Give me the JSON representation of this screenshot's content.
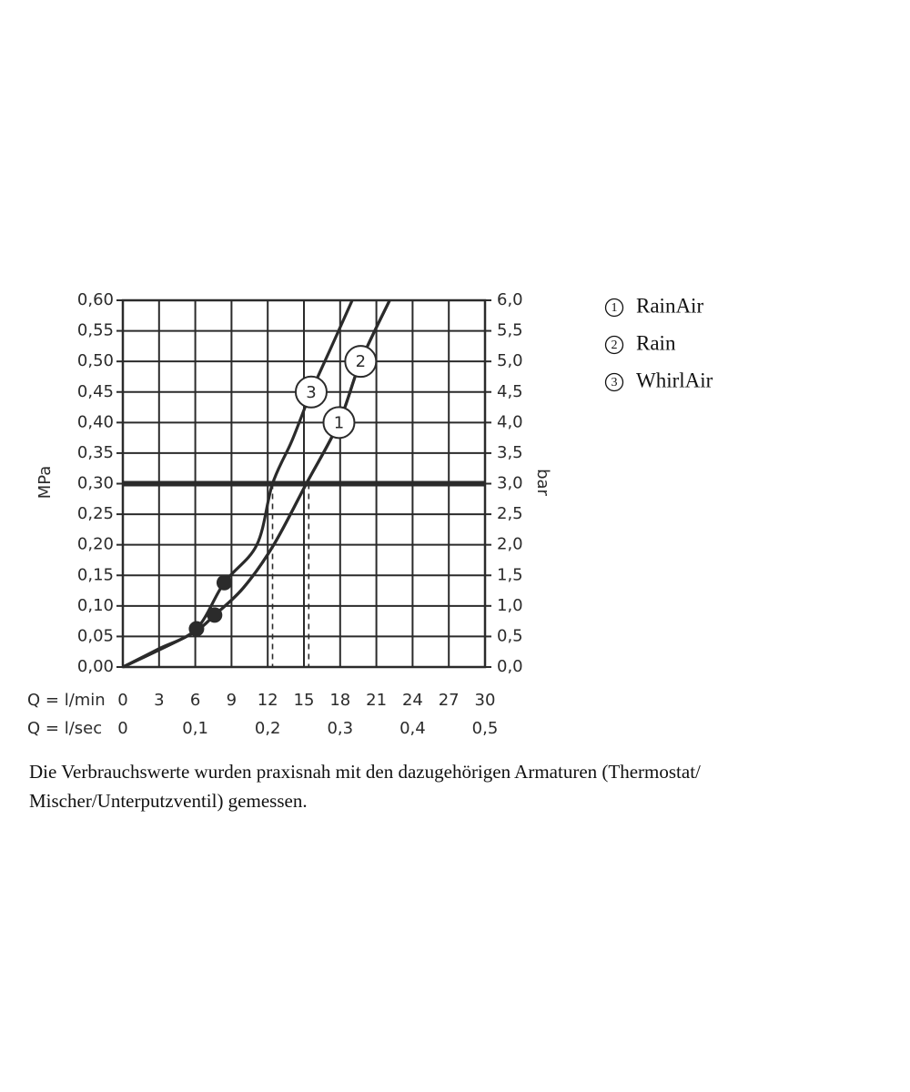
{
  "chart_data": {
    "type": "line",
    "ylabel": "MPa",
    "y2label": "bar",
    "xlabel": "Q = l/min",
    "x2label": "Q = l/sec",
    "xlim": [
      0,
      30
    ],
    "xticks": [
      0,
      3,
      6,
      9,
      12,
      15,
      18,
      21,
      24,
      27,
      30
    ],
    "x2lim": [
      0,
      0.5
    ],
    "x2ticks": [
      0,
      {
        "value": 0.1,
        "label": "0,1"
      },
      {
        "value": 0.2,
        "label": "0,2"
      },
      {
        "value": 0.3,
        "label": "0,3"
      },
      {
        "value": 0.4,
        "label": "0,4"
      },
      {
        "value": 0.5,
        "label": "0,5"
      }
    ],
    "ylim": [
      0,
      0.6
    ],
    "yticks": [
      {
        "value": 0,
        "label": "0,00"
      },
      {
        "value": 0.05,
        "label": "0,05"
      },
      {
        "value": 0.1,
        "label": "0,10"
      },
      {
        "value": 0.15,
        "label": "0,15"
      },
      {
        "value": 0.2,
        "label": "0,20"
      },
      {
        "value": 0.25,
        "label": "0,25"
      },
      {
        "value": 0.3,
        "label": "0,30"
      },
      {
        "value": 0.35,
        "label": "0,35"
      },
      {
        "value": 0.4,
        "label": "0,40"
      },
      {
        "value": 0.45,
        "label": "0,45"
      },
      {
        "value": 0.5,
        "label": "0,50"
      },
      {
        "value": 0.55,
        "label": "0,55"
      },
      {
        "value": 0.6,
        "label": "0,60"
      }
    ],
    "y2lim": [
      0,
      6
    ],
    "y2ticks": [
      {
        "value": 0,
        "label": "0,0"
      },
      {
        "value": 0.5,
        "label": "0,5"
      },
      {
        "value": 1,
        "label": "1,0"
      },
      {
        "value": 1.5,
        "label": "1,5"
      },
      {
        "value": 2,
        "label": "2,0"
      },
      {
        "value": 2.5,
        "label": "2,5"
      },
      {
        "value": 3,
        "label": "3,0"
      },
      {
        "value": 3.5,
        "label": "3,5"
      },
      {
        "value": 4,
        "label": "4,0"
      },
      {
        "value": 4.5,
        "label": "4,5"
      },
      {
        "value": 5,
        "label": "5,0"
      },
      {
        "value": 5.5,
        "label": "5,5"
      },
      {
        "value": 6,
        "label": "6,0"
      }
    ],
    "grid": true,
    "color": "#2b2b2b",
    "series": [
      {
        "name": "RainAir",
        "label": "1",
        "x": [
          0,
          3,
          6,
          7.6,
          10,
          12.5,
          15.2,
          17.9,
          19.7,
          22.1
        ],
        "values": [
          0,
          0.028,
          0.058,
          0.085,
          0.13,
          0.2,
          0.3,
          0.4,
          0.5,
          0.6
        ]
      },
      {
        "name": "Rain",
        "label": "2",
        "x": [
          0,
          3,
          6,
          7.6,
          10,
          12.5,
          15.2,
          17.9,
          19.7,
          22.1
        ],
        "values": [
          0,
          0.028,
          0.058,
          0.085,
          0.13,
          0.2,
          0.3,
          0.4,
          0.5,
          0.6
        ]
      },
      {
        "name": "WhirlAir",
        "label": "3",
        "x": [
          0,
          3,
          6.1,
          8.4,
          11.1,
          12.4,
          14,
          15.6,
          17.3,
          19.0
        ],
        "values": [
          0,
          0.03,
          0.0625,
          0.138,
          0.2,
          0.3,
          0.37,
          0.45,
          0.525,
          0.6
        ]
      }
    ],
    "points": {
      "x": [
        6.1,
        7.6,
        8.4
      ],
      "values": [
        0.0625,
        0.085,
        0.138
      ]
    },
    "reference_pressure": 0.3,
    "reference_flows": [
      12.4,
      15.4
    ],
    "footnote": [
      "Die Verbrauchswerte wurden praxisnah mit den dazugehörigen Armaturen (Thermostat/",
      "Mischer/Unterputzventil) gemessen."
    ]
  }
}
